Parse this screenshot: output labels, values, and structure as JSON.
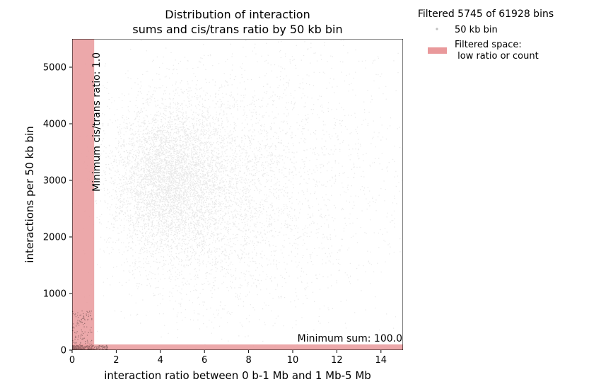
{
  "chart_data": {
    "type": "scatter",
    "title_line1": "Distribution of interaction",
    "title_line2": "sums and cis/trans ratio by 50 kb bin",
    "xlabel": "interaction ratio between 0 b-1 Mb and 1 Mb-5 Mb",
    "ylabel": "interactions per 50 kb bin",
    "xlim": [
      0,
      15
    ],
    "ylim": [
      0,
      5500
    ],
    "xticks": [
      0,
      2,
      4,
      6,
      8,
      10,
      12,
      14
    ],
    "yticks": [
      0,
      1000,
      2000,
      3000,
      4000,
      5000
    ],
    "grid": false,
    "legend": {
      "placement": "outside-top-right",
      "title": "Filtered 5745 of 61928 bins",
      "entries": [
        {
          "label": "50 kb bin",
          "kind": "marker",
          "color": "#bfbfbf"
        },
        {
          "label_line1": "Filtered space:",
          "label_line2": " low ratio or count",
          "kind": "patch",
          "color": "#e9999b"
        }
      ]
    },
    "filters": {
      "min_ratio": 1.0,
      "min_sum": 100.0,
      "color": "#e9999b"
    },
    "annotations": {
      "ratio_label": "Minimum cis/trans ratio: 1.0",
      "sum_label": "Minimum sum: 100.0"
    },
    "series": [
      {
        "kind": "density-cloud",
        "color": "#000000",
        "point_alpha": 0.09,
        "clusters": [
          {
            "center": [
              4.3,
              3050
            ],
            "spread": [
              1.2,
              620
            ],
            "weight": 0.42
          },
          {
            "center": [
              5.6,
              2750
            ],
            "spread": [
              2.0,
              900
            ],
            "weight": 0.3
          },
          {
            "center": [
              7.5,
              3000
            ],
            "spread": [
              3.2,
              1250
            ],
            "weight": 0.18
          },
          {
            "center": [
              10.5,
              3200
            ],
            "spread": [
              3.0,
              1500
            ],
            "weight": 0.1
          }
        ],
        "filtered_corner": {
          "x_range": [
            0,
            1.6
          ],
          "y_range": [
            0,
            90
          ],
          "fraction": 0.03
        }
      }
    ]
  }
}
